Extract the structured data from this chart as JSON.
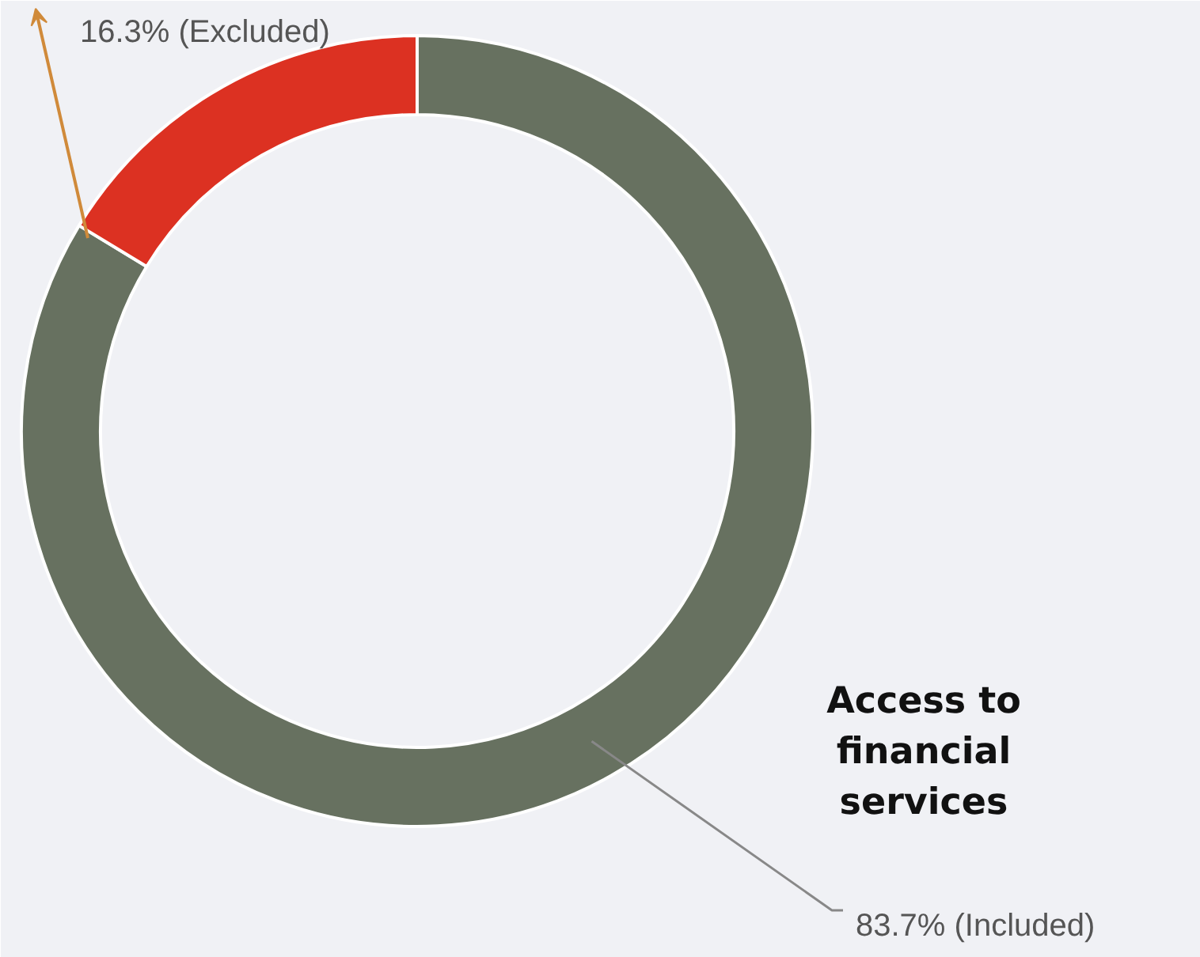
{
  "chart_data": {
    "type": "donut",
    "title": "Access to financial services",
    "categories": [
      "83.7% (Included)",
      "16.3% (Excluded)"
    ],
    "values": [
      83.7,
      16.3
    ],
    "colors": [
      "#677160",
      "#dc3122"
    ]
  }
}
